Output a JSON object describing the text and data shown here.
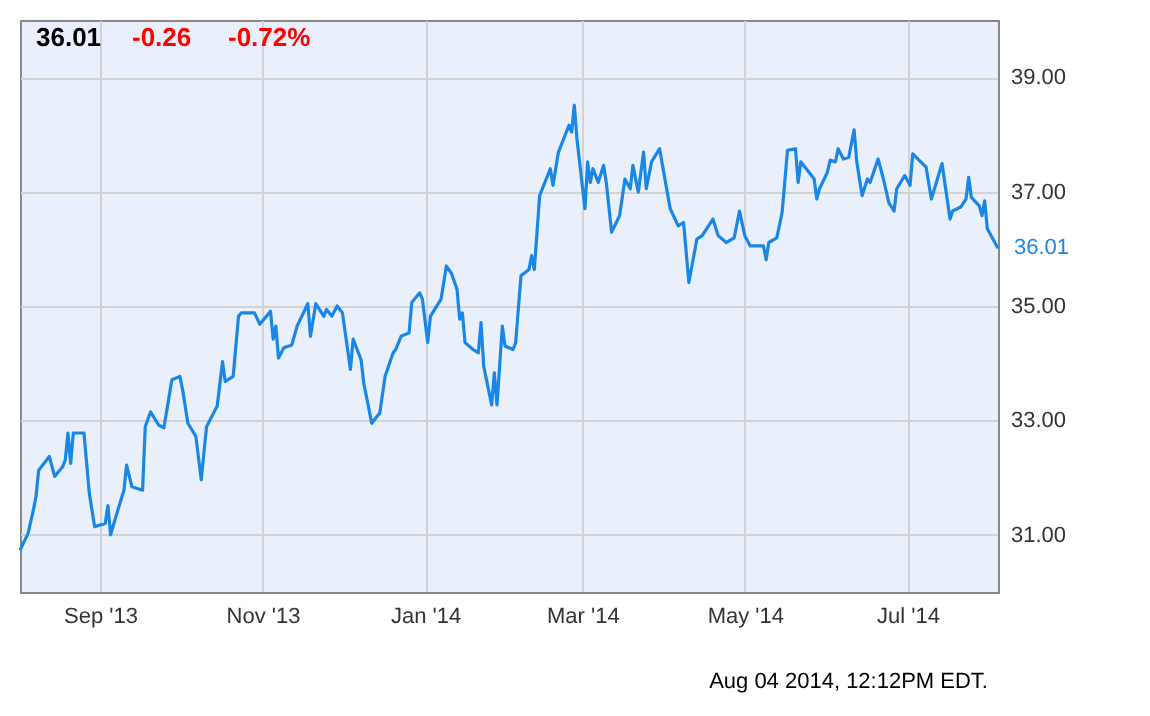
{
  "chart_data": {
    "type": "line",
    "title": "36.01",
    "annotations": [
      "-0.26",
      "-0.72%",
      {
        "text": "36.01",
        "x": "2014-08-04",
        "y": 36.01
      },
      "Aug 04 2014, 12:12PM EDT."
    ],
    "x": [
      "2013-08-02",
      "2013-08-05",
      "2013-08-07",
      "2013-08-08",
      "2013-08-09",
      "2013-08-13",
      "2013-08-15",
      "2013-08-18",
      "2013-08-19",
      "2013-08-20",
      "2013-08-21",
      "2013-08-22",
      "2013-08-26",
      "2013-08-28",
      "2013-08-30",
      "2013-09-03",
      "2013-09-04",
      "2013-09-05",
      "2013-09-07",
      "2013-09-10",
      "2013-09-11",
      "2013-09-13",
      "2013-09-17",
      "2013-09-18",
      "2013-09-20",
      "2013-09-23",
      "2013-09-25",
      "2013-09-28",
      "2013-10-01",
      "2013-10-02",
      "2013-10-04",
      "2013-10-07",
      "2013-10-09",
      "2013-10-11",
      "2013-10-15",
      "2013-10-17",
      "2013-10-18",
      "2013-10-21",
      "2013-10-23",
      "2013-10-24",
      "2013-10-29",
      "2013-10-31",
      "2013-11-04",
      "2013-11-05",
      "2013-11-06",
      "2013-11-07",
      "2013-11-09",
      "2013-11-12",
      "2013-11-14",
      "2013-11-18",
      "2013-11-19",
      "2013-11-21",
      "2013-11-24",
      "2013-11-25",
      "2013-11-27",
      "2013-11-29",
      "2013-12-01",
      "2013-12-04",
      "2013-12-05",
      "2013-12-08",
      "2013-12-09",
      "2013-12-12",
      "2013-12-15",
      "2013-12-17",
      "2013-12-20",
      "2013-12-21",
      "2013-12-23",
      "2013-12-26",
      "2013-12-27",
      "2013-12-30",
      "2013-12-31",
      "2014-01-02",
      "2014-01-03",
      "2014-01-07",
      "2014-01-09",
      "2014-01-11",
      "2014-01-13",
      "2014-01-14",
      "2014-01-15",
      "2014-01-16",
      "2014-01-19",
      "2014-01-21",
      "2014-01-22",
      "2014-01-23",
      "2014-01-26",
      "2014-01-27",
      "2014-01-28",
      "2014-01-30",
      "2014-01-31",
      "2014-02-03",
      "2014-02-04",
      "2014-02-06",
      "2014-02-09",
      "2014-02-10",
      "2014-02-11",
      "2014-02-13",
      "2014-02-17",
      "2014-02-18",
      "2014-02-20",
      "2014-02-24",
      "2014-02-25",
      "2014-02-26",
      "2014-02-27",
      "2014-03-02",
      "2014-03-03",
      "2014-03-04",
      "2014-03-05",
      "2014-03-07",
      "2014-03-09",
      "2014-03-10",
      "2014-03-12",
      "2014-03-15",
      "2014-03-17",
      "2014-03-19",
      "2014-03-20",
      "2014-03-22",
      "2014-03-24",
      "2014-03-25",
      "2014-03-27",
      "2014-03-30",
      "2014-04-01",
      "2014-04-03",
      "2014-04-06",
      "2014-04-08",
      "2014-04-10",
      "2014-04-13",
      "2014-04-15",
      "2014-04-19",
      "2014-04-21",
      "2014-04-24",
      "2014-04-27",
      "2014-04-29",
      "2014-05-01",
      "2014-05-03",
      "2014-05-08",
      "2014-05-09",
      "2014-05-10",
      "2014-05-13",
      "2014-05-15",
      "2014-05-17",
      "2014-05-20",
      "2014-05-21",
      "2014-05-22",
      "2014-05-26",
      "2014-05-27",
      "2014-05-28",
      "2014-05-29",
      "2014-06-01",
      "2014-06-02",
      "2014-06-04",
      "2014-06-05",
      "2014-06-07",
      "2014-06-09",
      "2014-06-11",
      "2014-06-12",
      "2014-06-14",
      "2014-06-16",
      "2014-06-17",
      "2014-06-20",
      "2014-06-22",
      "2014-06-24",
      "2014-06-26",
      "2014-06-27",
      "2014-06-30",
      "2014-07-02",
      "2014-07-03",
      "2014-07-06",
      "2014-07-08",
      "2014-07-10",
      "2014-07-14",
      "2014-07-17",
      "2014-07-18",
      "2014-07-21",
      "2014-07-23",
      "2014-07-24",
      "2014-07-25",
      "2014-07-28",
      "2014-07-29",
      "2014-07-30",
      "2014-07-31",
      "2014-08-04"
    ],
    "series": [
      {
        "color": "#1a87e6",
        "values": [
          30.73,
          31.02,
          31.43,
          31.67,
          32.13,
          32.37,
          32.02,
          32.19,
          32.31,
          32.78,
          32.25,
          32.78,
          32.78,
          31.73,
          31.14,
          31.2,
          31.51,
          31.0,
          31.32,
          31.78,
          32.22,
          31.84,
          31.78,
          32.89,
          33.15,
          32.92,
          32.87,
          33.71,
          33.77,
          33.54,
          32.95,
          32.72,
          31.96,
          32.89,
          33.25,
          34.03,
          33.68,
          33.77,
          34.82,
          34.88,
          34.88,
          34.68,
          34.91,
          34.42,
          34.65,
          34.09,
          34.27,
          34.32,
          34.65,
          35.04,
          34.47,
          35.04,
          34.82,
          34.94,
          34.82,
          35.0,
          34.88,
          33.89,
          34.42,
          34.06,
          33.65,
          32.95,
          33.13,
          33.77,
          34.18,
          34.24,
          34.47,
          34.53,
          35.06,
          35.23,
          35.12,
          34.36,
          34.82,
          35.12,
          35.7,
          35.56,
          35.29,
          34.77,
          34.88,
          34.36,
          34.24,
          34.18,
          34.71,
          33.95,
          33.27,
          33.83,
          33.27,
          34.65,
          34.3,
          34.24,
          34.36,
          35.53,
          35.64,
          35.88,
          35.64,
          36.93,
          37.4,
          37.11,
          37.68,
          38.16,
          38.04,
          38.51,
          37.92,
          36.7,
          37.52,
          37.16,
          37.4,
          37.16,
          37.46,
          37.16,
          36.29,
          36.58,
          37.22,
          37.05,
          37.46,
          36.99,
          37.69,
          37.05,
          37.52,
          37.75,
          37.22,
          36.7,
          36.4,
          36.46,
          35.41,
          36.17,
          36.23,
          36.52,
          36.23,
          36.11,
          36.19,
          36.66,
          36.23,
          36.05,
          36.05,
          35.81,
          36.11,
          36.19,
          36.64,
          37.72,
          37.75,
          37.16,
          37.52,
          37.28,
          37.22,
          36.87,
          37.05,
          37.34,
          37.55,
          37.52,
          37.75,
          37.57,
          37.6,
          38.08,
          37.52,
          36.93,
          37.22,
          37.16,
          37.57,
          37.22,
          36.81,
          36.66,
          37.05,
          37.28,
          37.11,
          37.66,
          37.52,
          37.43,
          36.87,
          37.49,
          36.52,
          36.66,
          36.73,
          36.87,
          37.25,
          36.9,
          36.75,
          36.58,
          36.84,
          36.35,
          36.01
        ]
      }
    ],
    "xlim": [
      "2013-08-02",
      "2014-08-04"
    ],
    "xticks": [
      {
        "value": "2013-09-01",
        "label": "Sep '13"
      },
      {
        "value": "2013-11-01",
        "label": "Nov '13"
      },
      {
        "value": "2014-01-01",
        "label": "Jan '14"
      },
      {
        "value": "2014-03-01",
        "label": "Mar '14"
      },
      {
        "value": "2014-05-01",
        "label": "May '14"
      },
      {
        "value": "2014-07-01",
        "label": "Jul '14"
      }
    ],
    "ylim": [
      30,
      40
    ],
    "yticks": [
      {
        "value": 31,
        "label": "31.00"
      },
      {
        "value": 33,
        "label": "33.00"
      },
      {
        "value": 35,
        "label": "35.00"
      },
      {
        "value": 37,
        "label": "37.00"
      },
      {
        "value": 39,
        "label": "39.00"
      }
    ],
    "grid": true,
    "marker": "none",
    "line_style": "solid"
  }
}
